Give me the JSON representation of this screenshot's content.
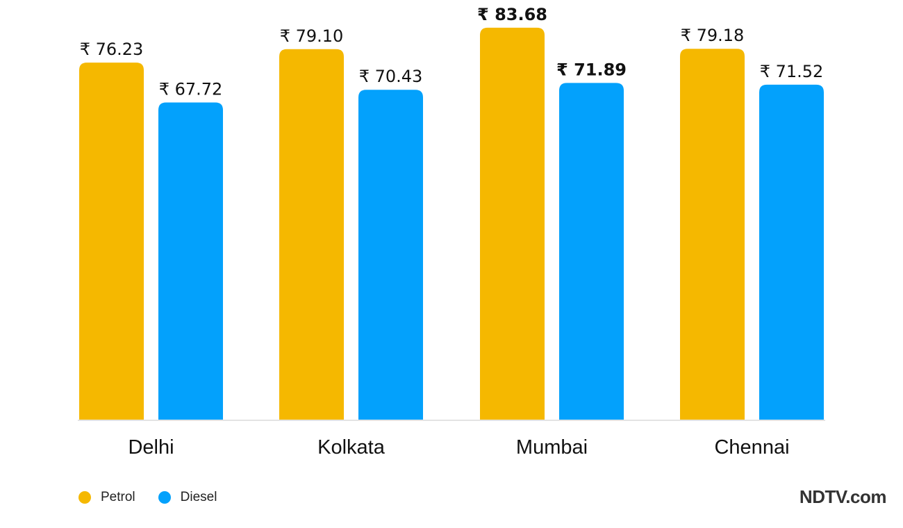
{
  "chart_data": {
    "type": "bar",
    "categories": [
      "Delhi",
      "Kolkata",
      "Mumbai",
      "Chennai"
    ],
    "series": [
      {
        "name": "Petrol",
        "color": "#F5B800",
        "values": [
          76.23,
          79.1,
          83.68,
          79.18
        ],
        "labels": [
          "₹ 76.23",
          "₹ 79.10",
          "₹ 83.68",
          "₹ 79.18"
        ]
      },
      {
        "name": "Diesel",
        "color": "#03A1FC",
        "values": [
          67.72,
          70.43,
          71.89,
          71.52
        ],
        "labels": [
          "₹ 67.72",
          "₹ 70.43",
          "₹ 71.89",
          "₹ 71.52"
        ]
      }
    ],
    "highlight_category": "Mumbai",
    "ylim": [
      0,
      85
    ],
    "grid": false,
    "legend_position": "bottom-left"
  },
  "legend": {
    "items": [
      {
        "label": "Petrol",
        "color": "#F5B800"
      },
      {
        "label": "Diesel",
        "color": "#03A1FC"
      }
    ]
  },
  "brand": {
    "text": "NDTV.com"
  }
}
